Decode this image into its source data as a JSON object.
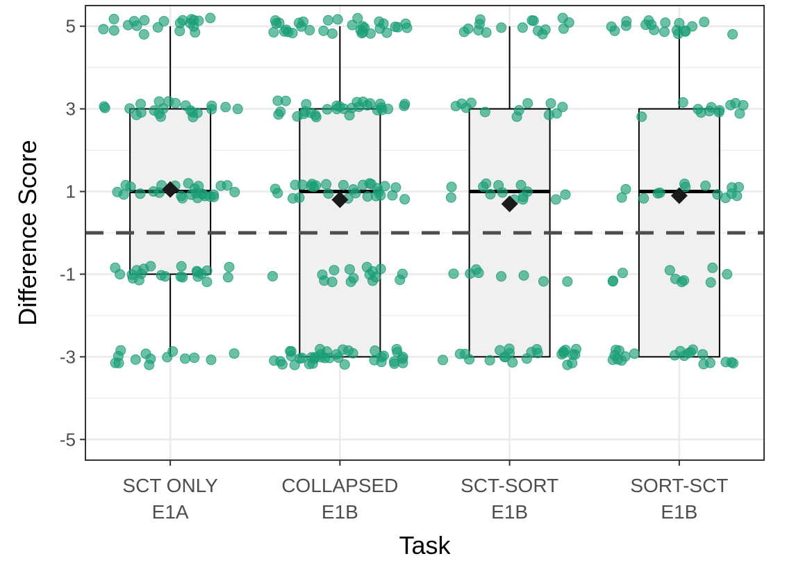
{
  "chart_data": {
    "type": "box",
    "xlabel": "Task",
    "ylabel": "Difference Score",
    "ylim": [
      -5.5,
      5.5
    ],
    "yticks": [
      5,
      3,
      1,
      -1,
      -3,
      -5
    ],
    "ytick_labels": [
      "5",
      "3",
      "1",
      "-1",
      "-3",
      "-5"
    ],
    "reference_line": 0,
    "grid": true,
    "colors": {
      "points": "#1b9e77",
      "box_fill": "#f0f0f0",
      "box_stroke": "#000000",
      "mean_marker": "#1a1a1a",
      "reference_line": "#4d4d4d",
      "grid": "#ebebeb",
      "panel_border": "#333333"
    },
    "categories": [
      {
        "label_line1": "SCT ONLY",
        "label_line2": "E1A",
        "min": -3,
        "q1": -1,
        "median": 1,
        "q3": 3,
        "max": 5,
        "mean": 1.05,
        "points": {
          "-5": 0,
          "-3": 14,
          "-1": 22,
          "1": 26,
          "3": 22,
          "5": 20
        }
      },
      {
        "label_line1": "COLLAPSED",
        "label_line2": "E1B",
        "min": -3,
        "q1": -3,
        "median": 1,
        "q3": 3,
        "max": 5,
        "mean": 0.8,
        "points": {
          "-5": 0,
          "-3": 38,
          "-1": 16,
          "1": 28,
          "3": 30,
          "5": 32
        }
      },
      {
        "label_line1": "SCT-SORT",
        "label_line2": "E1B",
        "min": -3,
        "q1": -3,
        "median": 1,
        "q3": 3,
        "max": 5,
        "mean": 0.7,
        "points": {
          "-5": 0,
          "-3": 24,
          "-1": 8,
          "1": 14,
          "3": 12,
          "5": 16
        }
      },
      {
        "label_line1": "SORT-SCT",
        "label_line2": "E1B",
        "min": -3,
        "q1": -3,
        "median": 1,
        "q3": 3,
        "max": 5,
        "mean": 0.9,
        "points": {
          "-5": 0,
          "-3": 20,
          "-1": 10,
          "1": 14,
          "3": 12,
          "5": 18
        }
      }
    ]
  }
}
